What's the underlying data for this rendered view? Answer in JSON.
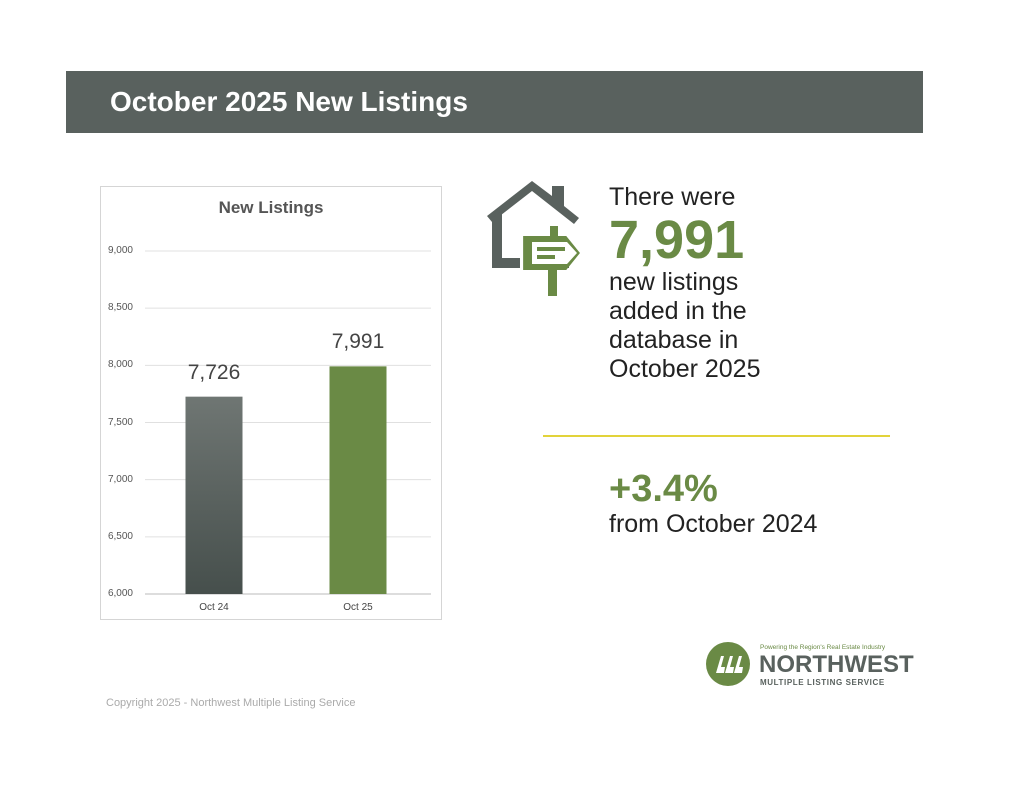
{
  "header": {
    "title": "October 2025 New Listings"
  },
  "chart_data": {
    "type": "bar",
    "title": "New Listings",
    "categories": [
      "Oct 24",
      "Oct 25"
    ],
    "values": [
      7726,
      7991
    ],
    "data_labels": [
      "7,726",
      "7,991"
    ],
    "ylim": [
      6000,
      9000
    ],
    "yticks": [
      "6,000",
      "6,500",
      "7,000",
      "7,500",
      "8,000",
      "8,500",
      "9,000"
    ],
    "grid": true,
    "colors": [
      "#59615e",
      "#6a8a45"
    ]
  },
  "summary": {
    "line1": "There were",
    "count": "7,991",
    "lines": [
      "new listings",
      "added in the",
      "database in",
      "October 2025"
    ],
    "change": "+3.4%",
    "change_label": "from October 2024"
  },
  "logo": {
    "tagline": "Powering the Region's Real Estate Industry",
    "name": "NORTHWEST",
    "sub": "MULTIPLE LISTING SERVICE"
  },
  "footer": {
    "copyright": "Copyright 2025 - Northwest Multiple Listing Service"
  },
  "colors": {
    "banner": "#59615e",
    "accent": "#6a8a45",
    "rule": "#e2d33a"
  }
}
